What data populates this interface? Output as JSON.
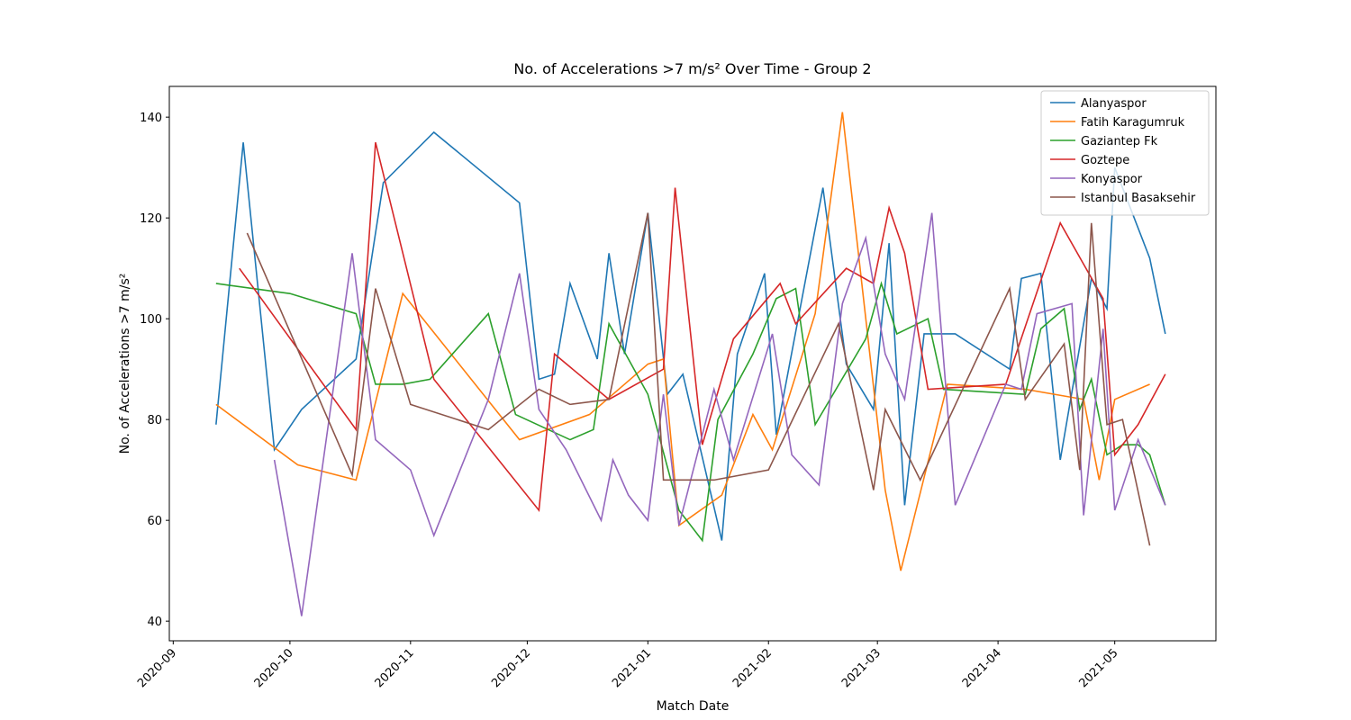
{
  "chart_data": {
    "type": "line",
    "title": "No. of Accelerations >7 m/s² Over Time - Group 2",
    "xlabel": "Match Date",
    "ylabel": "No. of Accelerations >7 m/s²",
    "xlim": [
      "2020-08-31",
      "2021-05-27"
    ],
    "ylim": [
      36.1,
      146.1
    ],
    "xticks": [
      {
        "value": "2020-09-01",
        "label": "2020-09"
      },
      {
        "value": "2020-10-01",
        "label": "2020-10"
      },
      {
        "value": "2020-11-01",
        "label": "2020-11"
      },
      {
        "value": "2020-12-01",
        "label": "2020-12"
      },
      {
        "value": "2021-01-01",
        "label": "2021-01"
      },
      {
        "value": "2021-02-01",
        "label": "2021-02"
      },
      {
        "value": "2021-03-01",
        "label": "2021-03"
      },
      {
        "value": "2021-04-01",
        "label": "2021-04"
      },
      {
        "value": "2021-05-01",
        "label": "2021-05"
      }
    ],
    "yticks": [
      40,
      60,
      80,
      100,
      120,
      140
    ],
    "grid": false,
    "legend": "upper-right",
    "series": [
      {
        "name": "Alanyaspor",
        "color": "#1f77b4",
        "x": [
          "2020-09-12",
          "2020-09-19",
          "2020-09-27",
          "2020-10-04",
          "2020-10-18",
          "2020-10-25",
          "2020-11-07",
          "2020-11-29",
          "2020-12-04",
          "2020-12-08",
          "2020-12-12",
          "2020-12-19",
          "2020-12-22",
          "2020-12-26",
          "2021-01-01",
          "2021-01-06",
          "2021-01-10",
          "2021-01-20",
          "2021-01-24",
          "2021-01-31",
          "2021-02-03",
          "2021-02-15",
          "2021-02-21",
          "2021-02-28",
          "2021-03-04",
          "2021-03-08",
          "2021-03-13",
          "2021-03-21",
          "2021-04-04",
          "2021-04-07",
          "2021-04-12",
          "2021-04-17",
          "2021-04-25",
          "2021-04-29",
          "2021-05-01",
          "2021-05-10",
          "2021-05-14"
        ],
        "values": [
          79,
          135,
          74,
          82,
          92,
          127,
          137,
          123,
          88,
          89,
          107,
          92,
          113,
          93,
          121,
          85,
          89,
          56,
          93,
          109,
          77,
          126,
          91,
          82,
          115,
          63,
          97,
          97,
          90,
          108,
          109,
          72,
          108,
          102,
          130,
          112,
          97
        ]
      },
      {
        "name": "Fatih Karagumruk",
        "color": "#ff7f0e",
        "x": [
          "2020-09-12",
          "2020-10-03",
          "2020-10-18",
          "2020-10-30",
          "2020-11-29",
          "2020-12-17",
          "2021-01-01",
          "2021-01-05",
          "2021-01-09",
          "2021-01-20",
          "2021-01-28",
          "2021-02-02",
          "2021-02-13",
          "2021-02-20",
          "2021-03-03",
          "2021-03-07",
          "2021-03-19",
          "2021-04-08",
          "2021-04-23",
          "2021-04-27",
          "2021-05-01",
          "2021-05-10"
        ],
        "values": [
          83,
          71,
          68,
          105,
          76,
          81,
          91,
          92,
          59,
          65,
          81,
          74,
          101,
          141,
          66,
          50,
          87,
          86,
          84,
          68,
          84,
          87
        ]
      },
      {
        "name": "Gaziantep Fk",
        "color": "#2ca02c",
        "x": [
          "2020-09-12",
          "2020-10-01",
          "2020-10-18",
          "2020-10-23",
          "2020-10-30",
          "2020-11-06",
          "2020-11-21",
          "2020-11-28",
          "2020-12-12",
          "2020-12-18",
          "2020-12-22",
          "2021-01-01",
          "2021-01-09",
          "2021-01-15",
          "2021-01-19",
          "2021-01-28",
          "2021-02-03",
          "2021-02-08",
          "2021-02-13",
          "2021-02-26",
          "2021-03-02",
          "2021-03-06",
          "2021-03-14",
          "2021-03-18",
          "2021-04-08",
          "2021-04-12",
          "2021-04-18",
          "2021-04-22",
          "2021-04-25",
          "2021-04-29",
          "2021-05-03",
          "2021-05-07",
          "2021-05-10",
          "2021-05-14"
        ],
        "values": [
          107,
          105,
          101,
          87,
          87,
          88,
          101,
          81,
          76,
          78,
          99,
          85,
          62,
          56,
          80,
          93,
          104,
          106,
          79,
          96,
          107,
          97,
          100,
          86,
          85,
          98,
          102,
          82,
          88,
          73,
          75,
          75,
          73,
          63
        ]
      },
      {
        "name": "Goztepe",
        "color": "#d62728",
        "x": [
          "2020-09-18",
          "2020-10-18",
          "2020-10-23",
          "2020-11-07",
          "2020-12-04",
          "2020-12-08",
          "2020-12-22",
          "2021-01-05",
          "2021-01-08",
          "2021-01-15",
          "2021-01-23",
          "2021-02-04",
          "2021-02-08",
          "2021-02-21",
          "2021-02-28",
          "2021-03-04",
          "2021-03-08",
          "2021-03-14",
          "2021-04-03",
          "2021-04-17",
          "2021-04-28",
          "2021-05-01",
          "2021-05-07",
          "2021-05-14"
        ],
        "values": [
          110,
          78,
          135,
          88,
          62,
          93,
          84,
          90,
          126,
          75,
          96,
          107,
          99,
          110,
          107,
          122,
          113,
          86,
          87,
          119,
          104,
          73,
          79,
          89
        ]
      },
      {
        "name": "Konyaspor",
        "color": "#9467bd",
        "x": [
          "2020-09-27",
          "2020-10-04",
          "2020-10-17",
          "2020-10-23",
          "2020-11-01",
          "2020-11-07",
          "2020-11-21",
          "2020-11-29",
          "2020-12-04",
          "2020-12-11",
          "2020-12-20",
          "2020-12-23",
          "2020-12-27",
          "2021-01-01",
          "2021-01-05",
          "2021-01-09",
          "2021-01-18",
          "2021-01-23",
          "2021-02-02",
          "2021-02-07",
          "2021-02-14",
          "2021-02-20",
          "2021-02-26",
          "2021-03-03",
          "2021-03-08",
          "2021-03-15",
          "2021-03-21",
          "2021-04-03",
          "2021-04-07",
          "2021-04-11",
          "2021-04-20",
          "2021-04-23",
          "2021-04-28",
          "2021-05-01",
          "2021-05-07",
          "2021-05-14"
        ],
        "values": [
          72,
          41,
          113,
          76,
          70,
          57,
          84,
          109,
          82,
          74,
          60,
          72,
          65,
          60,
          85,
          59,
          86,
          72,
          97,
          73,
          67,
          103,
          116,
          93,
          84,
          121,
          63,
          87,
          86,
          101,
          103,
          61,
          98,
          62,
          76,
          63
        ]
      },
      {
        "name": "Istanbul Basaksehir",
        "color": "#8c564b",
        "x": [
          "2020-09-20",
          "2020-10-17",
          "2020-10-23",
          "2020-11-01",
          "2020-11-21",
          "2020-12-04",
          "2020-12-12",
          "2020-12-22",
          "2021-01-01",
          "2021-01-05",
          "2021-01-18",
          "2021-02-01",
          "2021-02-19",
          "2021-02-28",
          "2021-03-03",
          "2021-03-12",
          "2021-04-04",
          "2021-04-08",
          "2021-04-18",
          "2021-04-22",
          "2021-04-25",
          "2021-04-29",
          "2021-05-03",
          "2021-05-10"
        ],
        "values": [
          117,
          69,
          106,
          83,
          78,
          86,
          83,
          84,
          121,
          68,
          68,
          70,
          99,
          66,
          82,
          68,
          106,
          84,
          95,
          70,
          119,
          79,
          80,
          55
        ]
      }
    ]
  }
}
